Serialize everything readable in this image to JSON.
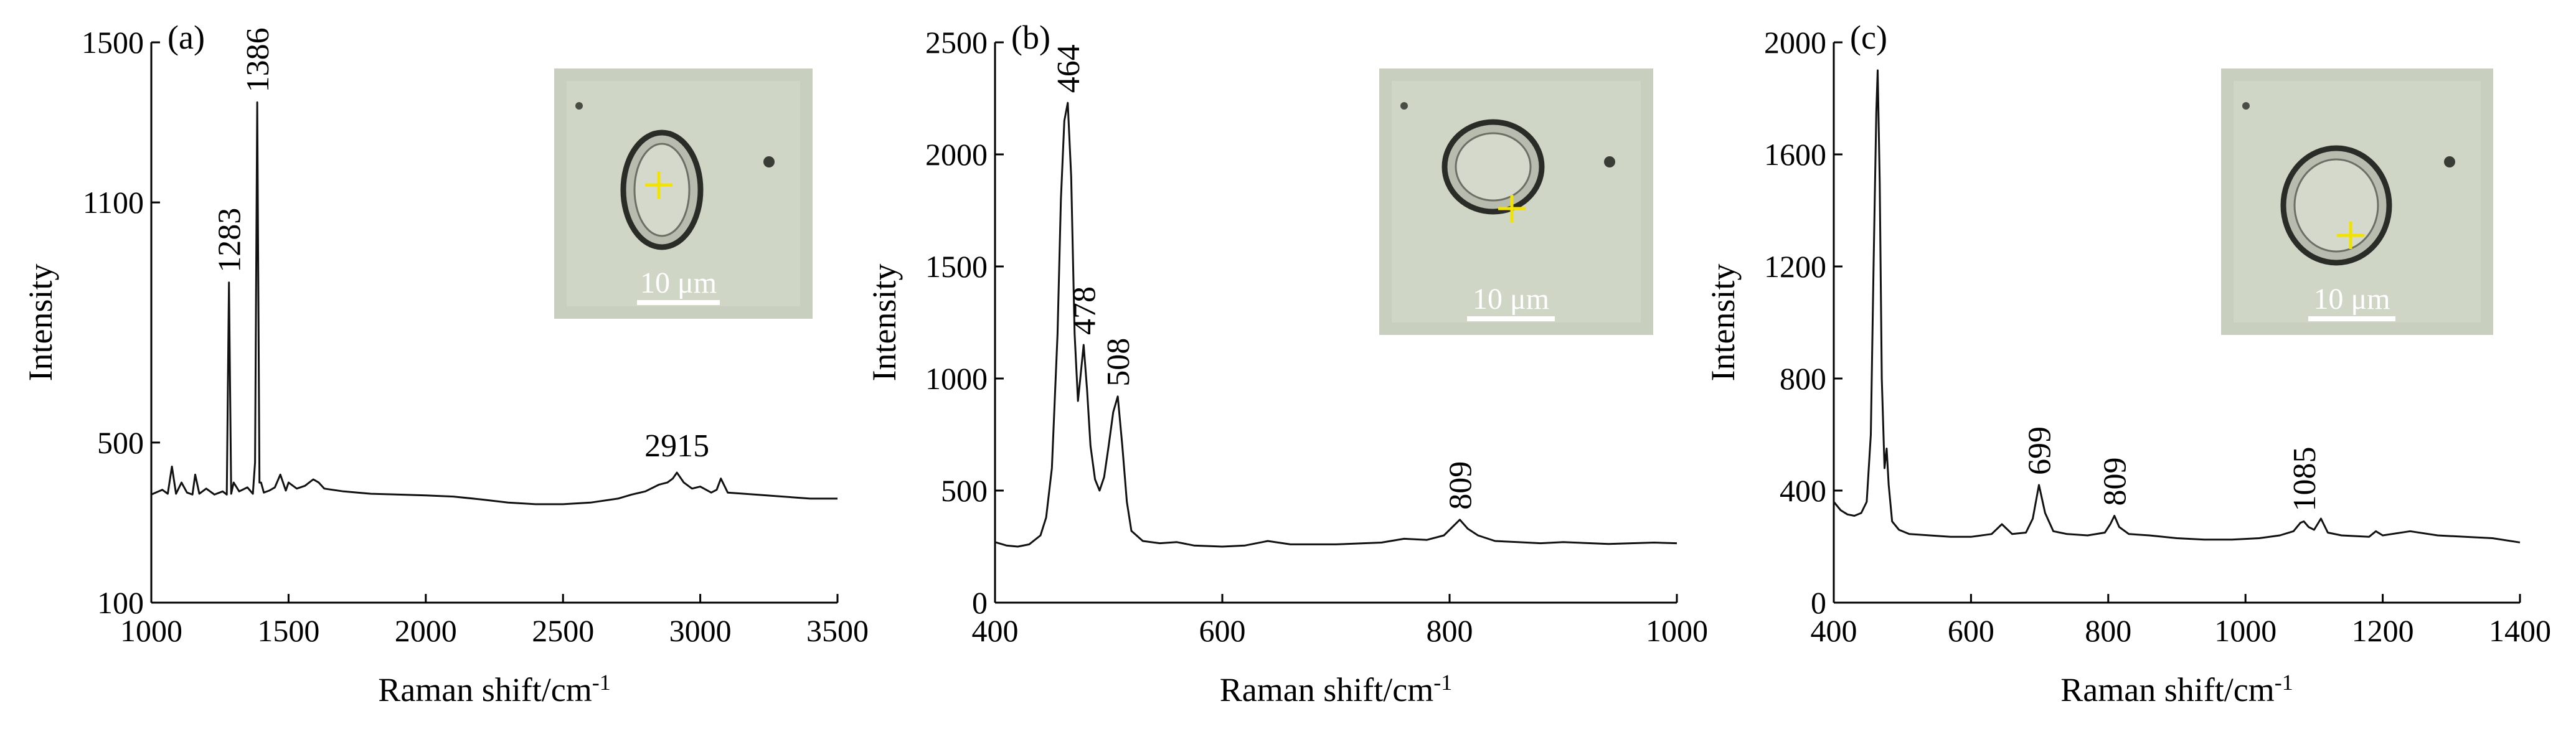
{
  "chart_data": [
    {
      "type": "line",
      "panel_label": "(a)",
      "xlabel": "Raman shift/cm",
      "xlabel_sup": "-1",
      "ylabel": "Intensity",
      "xlim": [
        1000,
        3500
      ],
      "ylim": [
        100,
        1500
      ],
      "xticks": [
        "1000",
        "1500",
        "2000",
        "2500",
        "3000",
        "3500"
      ],
      "yticks": [
        "100",
        "500",
        "1100",
        "1500"
      ],
      "x": [
        1000,
        1040,
        1060,
        1075,
        1090,
        1110,
        1130,
        1150,
        1160,
        1175,
        1200,
        1230,
        1260,
        1275,
        1283,
        1291,
        1300,
        1320,
        1350,
        1370,
        1378,
        1386,
        1394,
        1400,
        1410,
        1430,
        1450,
        1470,
        1490,
        1500,
        1530,
        1560,
        1590,
        1610,
        1630,
        1700,
        1800,
        1900,
        2000,
        2100,
        2200,
        2300,
        2400,
        2500,
        2600,
        2700,
        2750,
        2800,
        2850,
        2880,
        2900,
        2915,
        2940,
        2970,
        3000,
        3040,
        3060,
        3075,
        3100,
        3200,
        3300,
        3400,
        3500
      ],
      "y": [
        370,
        382,
        372,
        440,
        372,
        400,
        375,
        370,
        420,
        372,
        385,
        370,
        378,
        370,
        900,
        372,
        400,
        378,
        388,
        372,
        450,
        1350,
        400,
        400,
        375,
        380,
        388,
        420,
        380,
        400,
        385,
        392,
        408,
        400,
        385,
        378,
        372,
        370,
        368,
        365,
        358,
        350,
        346,
        346,
        350,
        360,
        370,
        378,
        395,
        400,
        410,
        425,
        400,
        385,
        390,
        375,
        382,
        410,
        375,
        370,
        365,
        360,
        360
      ],
      "annotations": [
        {
          "text": "1283",
          "x": 1283,
          "y": 900
        },
        {
          "text": "1386",
          "x": 1386,
          "y": 1350
        },
        {
          "text": "2915",
          "x": 2915,
          "y": 425
        }
      ],
      "inset": {
        "label": "10 μm"
      }
    },
    {
      "type": "line",
      "panel_label": "(b)",
      "xlabel": "Raman shift/cm",
      "xlabel_sup": "-1",
      "ylabel": "Intensity",
      "xlim": [
        400,
        1000
      ],
      "ylim": [
        0,
        2500
      ],
      "xticks": [
        "400",
        "600",
        "800",
        "1000"
      ],
      "yticks": [
        "0",
        "500",
        "1000",
        "1500",
        "2000",
        "2500"
      ],
      "x": [
        400,
        410,
        420,
        430,
        440,
        445,
        450,
        455,
        458,
        461,
        464,
        467,
        470,
        473,
        475,
        478,
        481,
        484,
        488,
        492,
        496,
        500,
        504,
        508,
        512,
        516,
        520,
        530,
        545,
        560,
        575,
        600,
        620,
        640,
        660,
        700,
        740,
        760,
        780,
        795,
        803,
        809,
        816,
        825,
        840,
        860,
        880,
        900,
        940,
        980,
        1000
      ],
      "y": [
        270,
        255,
        250,
        260,
        300,
        380,
        600,
        1200,
        1800,
        2150,
        2230,
        1900,
        1200,
        900,
        1000,
        1150,
        950,
        700,
        550,
        500,
        560,
        700,
        850,
        920,
        700,
        450,
        320,
        275,
        265,
        270,
        255,
        250,
        255,
        275,
        260,
        260,
        268,
        285,
        280,
        300,
        340,
        370,
        330,
        300,
        275,
        270,
        265,
        270,
        262,
        268,
        265
      ],
      "annotations": [
        {
          "text": "464",
          "x": 464,
          "y": 2230
        },
        {
          "text": "478",
          "x": 478,
          "y": 1150
        },
        {
          "text": "508",
          "x": 508,
          "y": 920
        },
        {
          "text": "809",
          "x": 809,
          "y": 370
        }
      ],
      "inset": {
        "label": "10 μm"
      }
    },
    {
      "type": "line",
      "panel_label": "(c)",
      "xlabel": "Raman shift/cm",
      "xlabel_sup": "-1",
      "ylabel": "Intensity",
      "xlim": [
        400,
        1400
      ],
      "ylim": [
        0,
        2000
      ],
      "xticks": [
        "400",
        "600",
        "800",
        "1000",
        "1200",
        "1400"
      ],
      "yticks": [
        "0",
        "400",
        "800",
        "1200",
        "1600",
        "2000"
      ],
      "x": [
        400,
        410,
        420,
        430,
        440,
        448,
        454,
        458,
        462,
        464,
        467,
        470,
        474,
        477,
        480,
        485,
        495,
        510,
        540,
        570,
        600,
        630,
        645,
        660,
        680,
        690,
        699,
        708,
        720,
        740,
        770,
        795,
        803,
        809,
        816,
        830,
        860,
        900,
        940,
        980,
        1020,
        1050,
        1070,
        1080,
        1085,
        1092,
        1100,
        1110,
        1120,
        1140,
        1180,
        1190,
        1200,
        1240,
        1280,
        1320,
        1360,
        1400
      ],
      "y": [
        360,
        330,
        315,
        310,
        320,
        360,
        600,
        1200,
        1750,
        1900,
        1500,
        800,
        480,
        550,
        420,
        290,
        260,
        245,
        240,
        235,
        235,
        245,
        280,
        245,
        250,
        300,
        420,
        320,
        255,
        245,
        240,
        250,
        280,
        310,
        270,
        245,
        240,
        230,
        225,
        225,
        230,
        240,
        255,
        285,
        290,
        270,
        260,
        300,
        250,
        240,
        235,
        255,
        240,
        255,
        240,
        235,
        230,
        215
      ],
      "annotations": [
        {
          "text": "699",
          "x": 699,
          "y": 420
        },
        {
          "text": "809",
          "x": 809,
          "y": 310
        },
        {
          "text": "1085",
          "x": 1085,
          "y": 290
        }
      ],
      "inset": {
        "label": "10 μm"
      }
    }
  ]
}
